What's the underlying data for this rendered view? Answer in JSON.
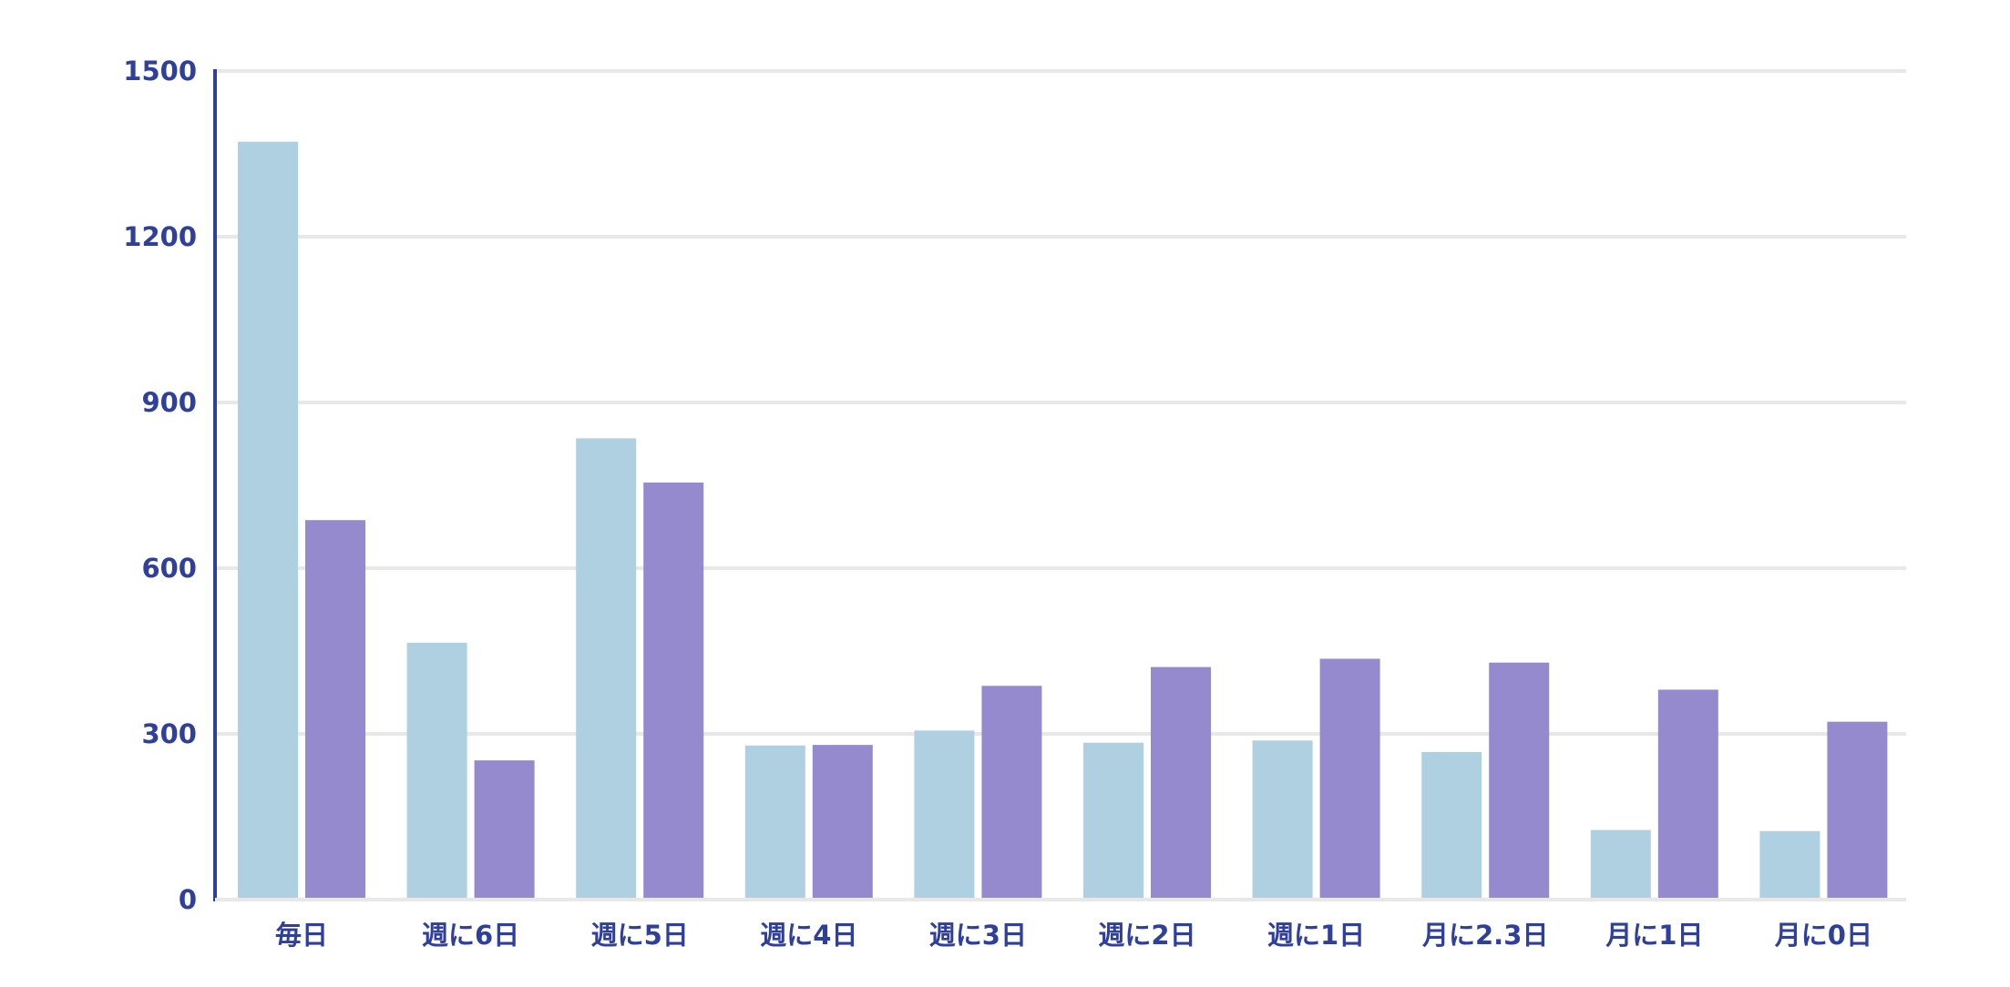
{
  "chart_data": {
    "type": "bar",
    "categories": [
      "毎日",
      "週に6日",
      "週に5日",
      "週に4日",
      "週に3日",
      "週に2日",
      "週に1日",
      "月に2.3日",
      "月に1日",
      "月に0日"
    ],
    "series": [
      {
        "values": [
          1372,
          465,
          835,
          279,
          306,
          284,
          288,
          267,
          126,
          124
        ]
      },
      {
        "values": [
          687,
          252,
          755,
          280,
          387,
          421,
          436,
          429,
          380,
          322
        ]
      }
    ],
    "yticks": [
      "0",
      "300",
      "600",
      "900",
      "1200",
      "1500"
    ],
    "ylim": [
      0,
      1500
    ],
    "grid": true,
    "legend": "none",
    "colors": {
      "series": [
        "#aed0e0",
        "#968ace"
      ],
      "axis": "#2e3f9c",
      "tick_text": "#2e3f9c",
      "grid": "#e8e8e8"
    }
  }
}
